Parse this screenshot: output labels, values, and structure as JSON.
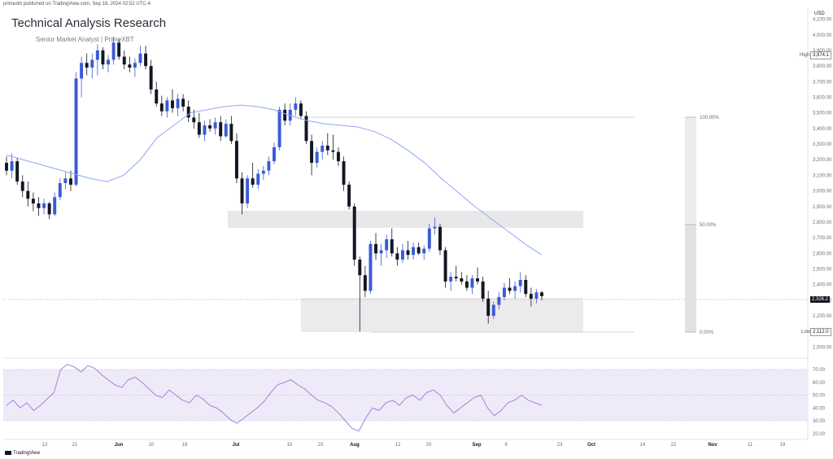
{
  "header": {
    "published_line": "primexbt published on TradingView.com, Sep 18, 2024 02:52 UTC-4",
    "title": "Technical Analysis Research",
    "subtitle": "Senior Market Analyst | PrimeXBT"
  },
  "footer": {
    "brand": "TradingView"
  },
  "price_axis": {
    "currency": "USD",
    "labels": [
      "4,100.00",
      "4,000.00",
      "3,900.00",
      "3,800.00",
      "3,700.00",
      "3,600.00",
      "3,500.00",
      "3,400.00",
      "3,300.00",
      "3,200.00",
      "3,100.00",
      "3,000.00",
      "2,900.00",
      "2,800.00",
      "2,700.00",
      "2,600.00",
      "2,500.00",
      "2,400.00",
      "2,300.00",
      "2,200.00",
      "2,100.00",
      "2,000.00"
    ],
    "high_label": "High",
    "high_value": "3,974.1",
    "low_label": "Low",
    "low_value": "2,112.0",
    "last_price": "2,326.2"
  },
  "rsi_axis": {
    "labels": [
      "70.00",
      "60.00",
      "50.00",
      "40.00",
      "30.00",
      "20.00"
    ]
  },
  "fib": {
    "top": "100.00%",
    "mid": "50.00%",
    "bottom": "0.00%"
  },
  "colors": {
    "up": "#3b5bd6",
    "down": "#131722",
    "ma": "#8fa8f0",
    "rsi": "#9b87d6",
    "zone": "#e8e8ea",
    "rsi_band": "#efeaf8"
  },
  "chart_data": {
    "type": "candlestick",
    "ylim": [
      1950,
      4150
    ],
    "x_labels": [
      "13",
      "21",
      "Jun",
      "10",
      "18",
      "Jul",
      "15",
      "23",
      "Aug",
      "12",
      "20",
      "Sep",
      "9",
      "23",
      "Oct",
      "14",
      "22",
      "Nov",
      "11",
      "19"
    ],
    "bold_labels": [
      "Jun",
      "Jul",
      "Aug",
      "Sep",
      "Oct",
      "Nov"
    ],
    "candles": [
      [
        3180,
        3220,
        3100,
        3130
      ],
      [
        3130,
        3240,
        3080,
        3190
      ],
      [
        3190,
        3210,
        3040,
        3060
      ],
      [
        3060,
        3100,
        2960,
        3000
      ],
      [
        3000,
        3060,
        2900,
        2950
      ],
      [
        2950,
        2990,
        2870,
        2920
      ],
      [
        2920,
        2960,
        2840,
        2890
      ],
      [
        2890,
        2950,
        2850,
        2920
      ],
      [
        2920,
        2930,
        2820,
        2850
      ],
      [
        2850,
        2990,
        2840,
        2960
      ],
      [
        2960,
        3080,
        2940,
        3050
      ],
      [
        3050,
        3120,
        3010,
        3080
      ],
      [
        3080,
        3130,
        3000,
        3040
      ],
      [
        3040,
        3760,
        3030,
        3720
      ],
      [
        3720,
        3860,
        3600,
        3820
      ],
      [
        3820,
        3880,
        3740,
        3790
      ],
      [
        3790,
        3880,
        3720,
        3840
      ],
      [
        3840,
        3940,
        3740,
        3900
      ],
      [
        3900,
        3920,
        3780,
        3810
      ],
      [
        3810,
        3870,
        3760,
        3840
      ],
      [
        3840,
        3990,
        3810,
        3950
      ],
      [
        3950,
        3970,
        3840,
        3860
      ],
      [
        3860,
        3900,
        3780,
        3810
      ],
      [
        3810,
        3860,
        3760,
        3790
      ],
      [
        3790,
        3850,
        3730,
        3820
      ],
      [
        3820,
        3930,
        3800,
        3880
      ],
      [
        3880,
        3930,
        3780,
        3800
      ],
      [
        3800,
        3840,
        3620,
        3650
      ],
      [
        3650,
        3700,
        3540,
        3560
      ],
      [
        3560,
        3610,
        3480,
        3510
      ],
      [
        3510,
        3600,
        3470,
        3580
      ],
      [
        3580,
        3650,
        3500,
        3530
      ],
      [
        3530,
        3620,
        3480,
        3590
      ],
      [
        3590,
        3620,
        3510,
        3540
      ],
      [
        3540,
        3580,
        3440,
        3470
      ],
      [
        3470,
        3520,
        3400,
        3440
      ],
      [
        3440,
        3500,
        3340,
        3360
      ],
      [
        3360,
        3450,
        3320,
        3420
      ],
      [
        3420,
        3460,
        3380,
        3400
      ],
      [
        3400,
        3470,
        3360,
        3440
      ],
      [
        3440,
        3480,
        3320,
        3350
      ],
      [
        3350,
        3460,
        3340,
        3430
      ],
      [
        3430,
        3480,
        3300,
        3320
      ],
      [
        3320,
        3370,
        3050,
        3080
      ],
      [
        3080,
        3120,
        2850,
        2920
      ],
      [
        2920,
        3100,
        2890,
        3080
      ],
      [
        3080,
        3180,
        3020,
        3040
      ],
      [
        3040,
        3140,
        3010,
        3110
      ],
      [
        3110,
        3160,
        3070,
        3130
      ],
      [
        3130,
        3220,
        3100,
        3190
      ],
      [
        3190,
        3310,
        3170,
        3280
      ],
      [
        3280,
        3540,
        3260,
        3520
      ],
      [
        3520,
        3560,
        3420,
        3450
      ],
      [
        3450,
        3560,
        3420,
        3520
      ],
      [
        3520,
        3600,
        3480,
        3560
      ],
      [
        3560,
        3580,
        3460,
        3480
      ],
      [
        3480,
        3510,
        3300,
        3320
      ],
      [
        3320,
        3360,
        3100,
        3180
      ],
      [
        3180,
        3280,
        3150,
        3250
      ],
      [
        3250,
        3320,
        3200,
        3290
      ],
      [
        3290,
        3370,
        3230,
        3260
      ],
      [
        3260,
        3360,
        3200,
        3250
      ],
      [
        3250,
        3280,
        3160,
        3190
      ],
      [
        3190,
        3220,
        3000,
        3040
      ],
      [
        3040,
        3060,
        2880,
        2900
      ],
      [
        2900,
        2920,
        2520,
        2560
      ],
      [
        2560,
        2580,
        2100,
        2460
      ],
      [
        2460,
        2520,
        2320,
        2360
      ],
      [
        2360,
        2680,
        2340,
        2660
      ],
      [
        2660,
        2730,
        2560,
        2600
      ],
      [
        2600,
        2660,
        2520,
        2620
      ],
      [
        2620,
        2720,
        2570,
        2690
      ],
      [
        2690,
        2760,
        2580,
        2600
      ],
      [
        2600,
        2640,
        2520,
        2560
      ],
      [
        2560,
        2660,
        2540,
        2620
      ],
      [
        2620,
        2680,
        2560,
        2590
      ],
      [
        2590,
        2670,
        2560,
        2640
      ],
      [
        2640,
        2670,
        2590,
        2600
      ],
      [
        2600,
        2650,
        2560,
        2630
      ],
      [
        2630,
        2790,
        2610,
        2760
      ],
      [
        2760,
        2830,
        2720,
        2770
      ],
      [
        2770,
        2790,
        2590,
        2620
      ],
      [
        2620,
        2640,
        2380,
        2420
      ],
      [
        2420,
        2480,
        2360,
        2450
      ],
      [
        2450,
        2520,
        2420,
        2440
      ],
      [
        2440,
        2480,
        2400,
        2420
      ],
      [
        2420,
        2460,
        2360,
        2380
      ],
      [
        2380,
        2460,
        2340,
        2440
      ],
      [
        2440,
        2510,
        2400,
        2420
      ],
      [
        2420,
        2450,
        2290,
        2310
      ],
      [
        2310,
        2360,
        2150,
        2200
      ],
      [
        2200,
        2290,
        2180,
        2270
      ],
      [
        2270,
        2350,
        2240,
        2320
      ],
      [
        2320,
        2410,
        2300,
        2380
      ],
      [
        2380,
        2440,
        2340,
        2360
      ],
      [
        2360,
        2420,
        2310,
        2390
      ],
      [
        2390,
        2480,
        2350,
        2430
      ],
      [
        2430,
        2460,
        2320,
        2340
      ],
      [
        2340,
        2380,
        2260,
        2310
      ],
      [
        2310,
        2370,
        2280,
        2350
      ],
      [
        2350,
        2360,
        2300,
        2326
      ]
    ],
    "ma_series": [
      3230,
      3200,
      3170,
      3140,
      3110,
      3080,
      3060,
      3100,
      3200,
      3340,
      3420,
      3500,
      3520,
      3540,
      3550,
      3540,
      3520,
      3480,
      3450,
      3430,
      3420,
      3410,
      3380,
      3330,
      3260,
      3180,
      3080,
      2990,
      2900,
      2820,
      2740,
      2660,
      2590
    ],
    "rsi_series": [
      42,
      46,
      40,
      44,
      38,
      42,
      47,
      52,
      70,
      74,
      72,
      68,
      73,
      71,
      66,
      62,
      58,
      56,
      62,
      64,
      60,
      55,
      50,
      48,
      54,
      50,
      46,
      44,
      50,
      47,
      42,
      40,
      36,
      31,
      28,
      32,
      36,
      40,
      45,
      52,
      58,
      60,
      62,
      58,
      55,
      50,
      46,
      44,
      41,
      36,
      30,
      24,
      22,
      32,
      40,
      38,
      44,
      46,
      42,
      48,
      50,
      46,
      52,
      54,
      50,
      42,
      36,
      40,
      44,
      48,
      50,
      40,
      34,
      38,
      44,
      46,
      50,
      46,
      44,
      42
    ]
  }
}
